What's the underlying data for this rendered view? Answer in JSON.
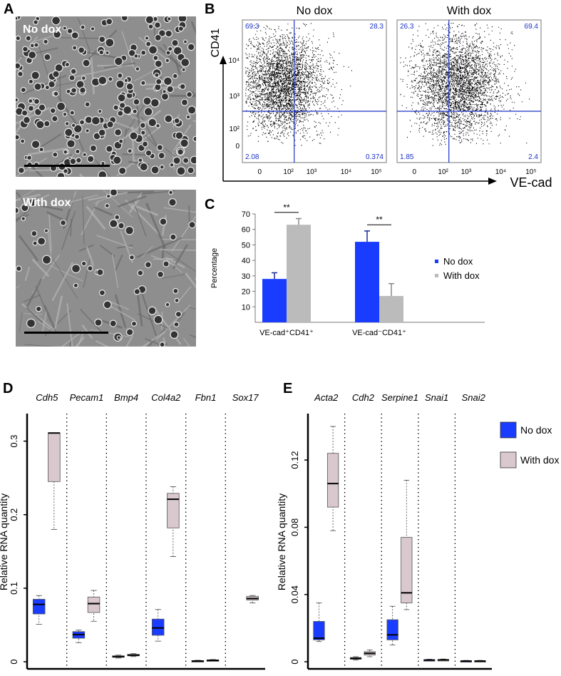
{
  "panels": {
    "A": {
      "letter": "A",
      "images": [
        {
          "label": "No dox"
        },
        {
          "label": "With dox"
        }
      ]
    },
    "B": {
      "letter": "B",
      "y_axis_label": "CD41",
      "x_axis_label": "VE-cad",
      "y_ticks": [
        "10⁴",
        "10³",
        "10²",
        "0"
      ],
      "x_ticks": [
        "0",
        "10²",
        "10³",
        "10⁴",
        "10⁵"
      ],
      "plots": [
        {
          "title": "No dox",
          "q_ul": "69.3",
          "q_ur": "28.3",
          "q_ll": "2.08",
          "q_lr": "0.374",
          "cluster_x": 0.28,
          "cluster_y": 0.55,
          "spread_x": 0.14,
          "spread_y": 0.17
        },
        {
          "title": "With dox",
          "q_ul": "26.3",
          "q_ur": "69.4",
          "q_ll": "1.85",
          "q_lr": "2.4",
          "cluster_x": 0.42,
          "cluster_y": 0.55,
          "spread_x": 0.15,
          "spread_y": 0.18
        }
      ]
    },
    "C": {
      "letter": "C",
      "sig_marks": [
        "**",
        "**"
      ]
    },
    "D": {
      "letter": "D",
      "ylabel": "Relative RNA quantity",
      "y_ticks": [
        "0",
        "0.1",
        "0.2",
        "0.3"
      ]
    },
    "E": {
      "letter": "E",
      "ylabel": "Relative RNA quantity",
      "y_ticks": [
        "0",
        "0.04",
        "0.08",
        "0.12"
      ]
    },
    "legend": {
      "no_dox": "No dox",
      "with_dox": "With dox"
    }
  },
  "colors": {
    "no_dox": "#1a3cff",
    "with_dox": "#bbbbbb",
    "box_with_dox": "#d9c8cd",
    "quadrant": "#1c33c4",
    "quadrant_text": "#1c33c4"
  },
  "chart_data": [
    {
      "type": "bar",
      "title": "",
      "ylabel": "Percentage",
      "ylim": [
        0,
        70
      ],
      "categories": [
        "VE-cad⁺CD41⁺",
        "VE-cad⁻CD41⁺"
      ],
      "series": [
        {
          "name": "No dox",
          "values": [
            28,
            52
          ],
          "errors": [
            4,
            7
          ]
        },
        {
          "name": "With dox",
          "values": [
            63,
            17
          ],
          "errors": [
            4,
            8
          ]
        }
      ],
      "legend": "right"
    },
    {
      "type": "box",
      "ylabel": "Relative RNA quantity",
      "ylim": [
        0,
        0.32
      ],
      "categories": [
        "Cdh5",
        "Pecam1",
        "Bmp4",
        "Col4a2",
        "Fbn1",
        "Sox17"
      ],
      "series": [
        {
          "name": "No dox",
          "boxes": [
            {
              "min": 0.051,
              "q1": 0.065,
              "median": 0.078,
              "q3": 0.085,
              "max": 0.09
            },
            {
              "min": 0.026,
              "q1": 0.032,
              "median": 0.037,
              "q3": 0.041,
              "max": 0.043
            },
            {
              "min": 0.005,
              "q1": 0.006,
              "median": 0.007,
              "q3": 0.008,
              "max": 0.009
            },
            {
              "min": 0.028,
              "q1": 0.036,
              "median": 0.046,
              "q3": 0.058,
              "max": 0.071
            },
            {
              "min": 0.0,
              "q1": 0.0005,
              "median": 0.001,
              "q3": 0.0015,
              "max": 0.002
            },
            null
          ]
        },
        {
          "name": "With dox",
          "boxes": [
            {
              "min": 0.18,
              "q1": 0.245,
              "median": 0.311,
              "q3": 0.311,
              "max": 0.311
            },
            {
              "min": 0.055,
              "q1": 0.067,
              "median": 0.079,
              "q3": 0.088,
              "max": 0.097
            },
            {
              "min": 0.007,
              "q1": 0.008,
              "median": 0.009,
              "q3": 0.01,
              "max": 0.011
            },
            {
              "min": 0.143,
              "q1": 0.182,
              "median": 0.221,
              "q3": 0.229,
              "max": 0.238
            },
            {
              "min": 0.001,
              "q1": 0.0015,
              "median": 0.002,
              "q3": 0.0025,
              "max": 0.003
            },
            {
              "min": 0.08,
              "q1": 0.084,
              "median": 0.086,
              "q3": 0.089,
              "max": 0.09
            }
          ]
        }
      ],
      "grid": false
    },
    {
      "type": "box",
      "ylabel": "Relative RNA quantity",
      "ylim": [
        0,
        0.14
      ],
      "categories": [
        "Acta2",
        "Cdh2",
        "Serpine1",
        "Snai1",
        "Snai2"
      ],
      "series": [
        {
          "name": "No dox",
          "boxes": [
            {
              "min": 0.012,
              "q1": 0.013,
              "median": 0.014,
              "q3": 0.024,
              "max": 0.035
            },
            {
              "min": 0.001,
              "q1": 0.0015,
              "median": 0.002,
              "q3": 0.0025,
              "max": 0.003
            },
            {
              "min": 0.01,
              "q1": 0.013,
              "median": 0.016,
              "q3": 0.025,
              "max": 0.033
            },
            {
              "min": 0.0005,
              "q1": 0.0008,
              "median": 0.001,
              "q3": 0.0012,
              "max": 0.0015
            },
            {
              "min": 0.0,
              "q1": 0.0002,
              "median": 0.0004,
              "q3": 0.0006,
              "max": 0.0008
            }
          ]
        },
        {
          "name": "With dox",
          "boxes": [
            {
              "min": 0.078,
              "q1": 0.092,
              "median": 0.106,
              "q3": 0.124,
              "max": 0.14
            },
            {
              "min": 0.003,
              "q1": 0.004,
              "median": 0.005,
              "q3": 0.006,
              "max": 0.007
            },
            {
              "min": 0.031,
              "q1": 0.035,
              "median": 0.041,
              "q3": 0.074,
              "max": 0.108
            },
            {
              "min": 0.0006,
              "q1": 0.0009,
              "median": 0.0011,
              "q3": 0.0013,
              "max": 0.0016
            },
            {
              "min": 0.0,
              "q1": 0.0002,
              "median": 0.0004,
              "q3": 0.0006,
              "max": 0.0008
            }
          ]
        }
      ],
      "grid": false
    }
  ]
}
